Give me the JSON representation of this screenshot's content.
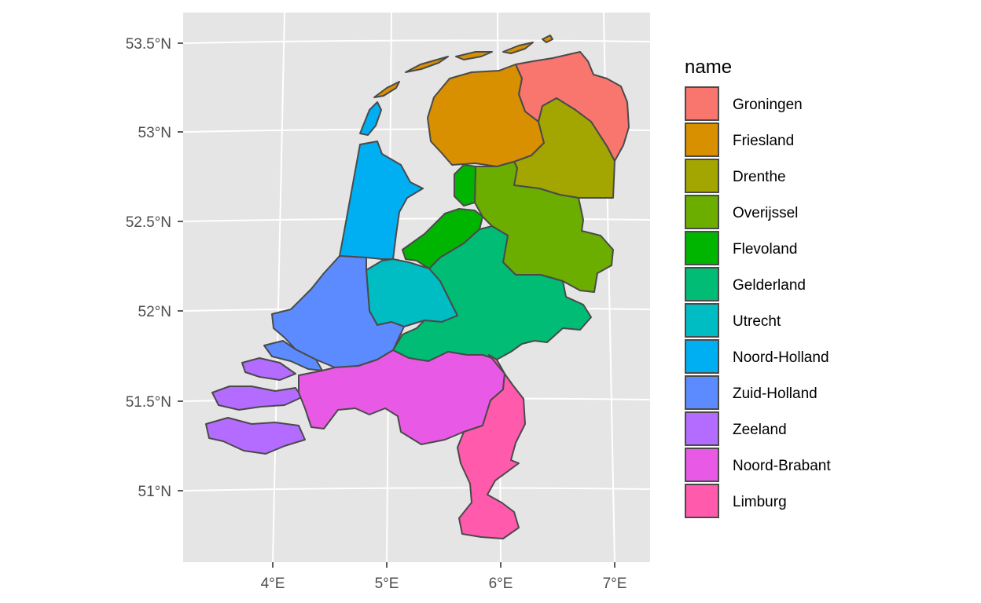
{
  "chart_data": {
    "type": "map",
    "title": "",
    "legend": {
      "title": "name",
      "position": "right",
      "entries": [
        {
          "name": "Groningen",
          "color": "#F8766D"
        },
        {
          "name": "Friesland",
          "color": "#D89000"
        },
        {
          "name": "Drenthe",
          "color": "#A3A500"
        },
        {
          "name": "Overijssel",
          "color": "#6BAE00"
        },
        {
          "name": "Flevoland",
          "color": "#00B500"
        },
        {
          "name": "Gelderland",
          "color": "#00BC74"
        },
        {
          "name": "Utrecht",
          "color": "#00BCC3"
        },
        {
          "name": "Noord-Holland",
          "color": "#00AEF2"
        },
        {
          "name": "Zuid-Holland",
          "color": "#5B8BFF"
        },
        {
          "name": "Zeeland",
          "color": "#B46BFF"
        },
        {
          "name": "Noord-Brabant",
          "color": "#E85AE5"
        },
        {
          "name": "Limburg",
          "color": "#FF5AAC"
        }
      ]
    },
    "x_axis": {
      "label": "",
      "ticks": [
        "4°E",
        "5°E",
        "6°E",
        "7°E"
      ],
      "range": [
        3.2,
        7.3
      ]
    },
    "y_axis": {
      "label": "",
      "ticks": [
        "53.5°N",
        "53°N",
        "52.5°N",
        "52°N",
        "51.5°N",
        "51°N"
      ],
      "range": [
        50.7,
        53.7
      ]
    },
    "grid": true,
    "panel_background": "#E5E5E5"
  }
}
